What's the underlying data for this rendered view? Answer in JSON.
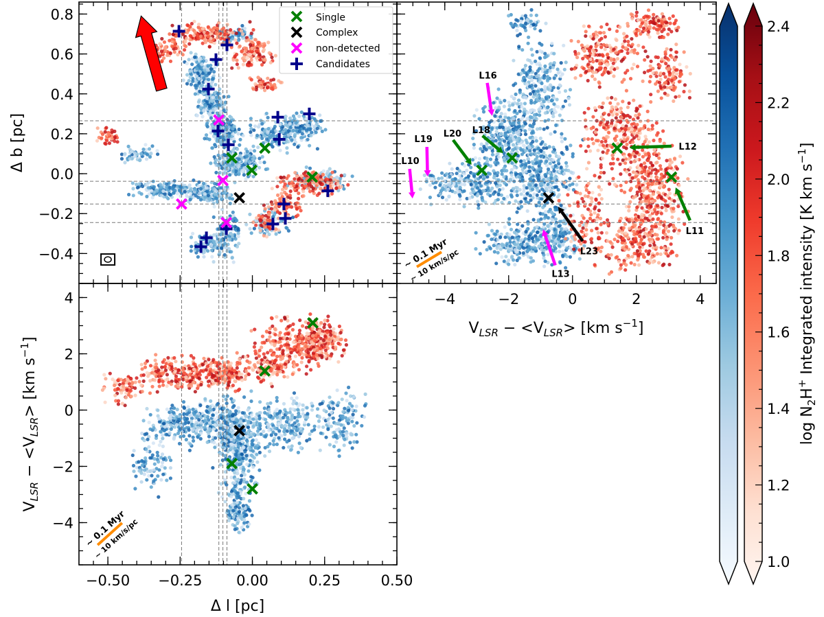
{
  "chart_data": {
    "type": "scatter",
    "panels": [
      {
        "id": "position-position",
        "xlabel": "",
        "ylabel": "Δ b [pc]",
        "xlim": [
          -0.6,
          0.5
        ],
        "ylim": [
          -0.55,
          0.86
        ],
        "yticks": [
          0.8,
          0.6,
          0.4,
          0.2,
          0.0,
          -0.2,
          -0.4
        ],
        "ytick_labels": [
          "0.8",
          "0.6",
          "0.4",
          "0.2",
          "0.0",
          "−0.2",
          "−0.4"
        ],
        "vlines": [
          -0.245,
          -0.116,
          -0.102,
          -0.088
        ],
        "hlines": [
          0.265,
          -0.038,
          -0.152,
          -0.245
        ],
        "markers": {
          "single": [
            [
              0.043,
              0.128
            ],
            [
              -0.071,
              0.079
            ],
            [
              -0.002,
              0.017
            ],
            [
              0.207,
              -0.017
            ]
          ],
          "complex": [
            [
              -0.045,
              -0.121
            ]
          ],
          "non_detected": [
            [
              -0.116,
              0.269
            ],
            [
              -0.102,
              -0.034
            ],
            [
              -0.245,
              -0.152
            ],
            [
              -0.09,
              -0.245
            ]
          ],
          "candidates": [
            [
              -0.254,
              0.714
            ],
            [
              -0.088,
              0.645
            ],
            [
              -0.126,
              0.572
            ],
            [
              -0.152,
              0.424
            ],
            [
              -0.119,
              0.214
            ],
            [
              -0.083,
              0.145
            ],
            [
              0.088,
              0.283
            ],
            [
              0.197,
              0.3
            ],
            [
              0.093,
              0.172
            ],
            [
              0.261,
              -0.086
            ],
            [
              0.109,
              -0.152
            ],
            [
              0.114,
              -0.224
            ],
            [
              0.071,
              -0.252
            ],
            [
              -0.09,
              -0.276
            ],
            [
              -0.159,
              -0.321
            ],
            [
              -0.178,
              -0.366
            ]
          ]
        },
        "big_arrow": {
          "from": [
            -0.314,
            0.421
          ],
          "to": [
            -0.385,
            0.79
          ],
          "color": "#ff0000"
        },
        "beam": [
          -0.5,
          -0.43
        ],
        "clouds": {
          "blue": [
            [
              -0.18,
              0.5,
              0.04,
              0.06,
              160
            ],
            [
              -0.14,
              0.35,
              0.04,
              0.06,
              160
            ],
            [
              -0.1,
              0.2,
              0.04,
              0.06,
              180
            ],
            [
              -0.05,
              0.05,
              0.06,
              0.05,
              200
            ],
            [
              -0.3,
              -0.08,
              0.08,
              0.03,
              150
            ],
            [
              -0.15,
              -0.1,
              0.06,
              0.04,
              160
            ],
            [
              0.1,
              0.2,
              0.08,
              0.06,
              180
            ],
            [
              0.18,
              0.25,
              0.05,
              0.04,
              80
            ],
            [
              -0.15,
              -0.35,
              0.05,
              0.05,
              90
            ],
            [
              -0.08,
              -0.3,
              0.03,
              0.08,
              90
            ],
            [
              0.25,
              -0.03,
              0.08,
              0.04,
              80
            ],
            [
              -0.4,
              0.1,
              0.05,
              0.03,
              50
            ],
            [
              -0.05,
              0.7,
              0.05,
              0.03,
              50
            ],
            [
              0.05,
              -0.25,
              0.05,
              0.05,
              70
            ]
          ],
          "red": [
            [
              -0.15,
              0.7,
              0.1,
              0.04,
              180
            ],
            [
              0.0,
              0.6,
              0.05,
              0.05,
              110
            ],
            [
              -0.3,
              0.62,
              0.05,
              0.04,
              60
            ],
            [
              0.05,
              0.45,
              0.04,
              0.03,
              50
            ],
            [
              0.2,
              -0.05,
              0.08,
              0.04,
              160
            ],
            [
              0.1,
              -0.15,
              0.05,
              0.05,
              80
            ],
            [
              -0.5,
              0.19,
              0.03,
              0.03,
              40
            ],
            [
              0.05,
              -0.25,
              0.03,
              0.04,
              40
            ]
          ]
        }
      },
      {
        "id": "velocity-position",
        "xlabel": "V_{LSR} − <V_{LSR}> [km s^{−1}]",
        "ylabel": "",
        "xlim": [
          -5.5,
          4.5
        ],
        "ylim": [
          -0.55,
          0.86
        ],
        "xticks": [
          -4,
          -2,
          0,
          2,
          4
        ],
        "xtick_labels": [
          "−4",
          "−2",
          "0",
          "2",
          "4"
        ],
        "hlines": [
          0.265,
          -0.038,
          -0.152,
          -0.245
        ],
        "markers": {
          "single": [
            [
              -2.84,
              0.017
            ],
            [
              -1.89,
              0.079
            ],
            [
              1.4,
              0.128
            ],
            [
              3.1,
              -0.017
            ]
          ],
          "complex": [
            [
              -0.75,
              -0.121
            ]
          ]
        },
        "annotations": [
          {
            "label": "L16",
            "text": [
              -2.65,
              0.493
            ],
            "tail": [
              -2.67,
              0.455
            ],
            "head": [
              -2.52,
              0.29
            ],
            "color": "#ff00ff"
          },
          {
            "label": "L19",
            "text": [
              -4.67,
              0.176
            ],
            "tail": [
              -4.56,
              0.134
            ],
            "head": [
              -4.54,
              -0.014
            ],
            "color": "#ff00ff"
          },
          {
            "label": "L10",
            "text": [
              -5.08,
              0.066
            ],
            "tail": [
              -5.1,
              0.024
            ],
            "head": [
              -5.01,
              -0.124
            ],
            "color": "#ff00ff"
          },
          {
            "label": "L20",
            "text": [
              -3.76,
              0.203
            ],
            "tail": [
              -3.74,
              0.169
            ],
            "head": [
              -3.16,
              0.045
            ],
            "color": "#008000"
          },
          {
            "label": "L18",
            "text": [
              -2.86,
              0.221
            ],
            "tail": [
              -2.82,
              0.19
            ],
            "head": [
              -2.17,
              0.103
            ],
            "color": "#008000"
          },
          {
            "label": "L12",
            "text": [
              3.61,
              0.138
            ],
            "tail": [
              3.1,
              0.138
            ],
            "head": [
              1.78,
              0.131
            ],
            "color": "#008000"
          },
          {
            "label": "L11",
            "text": [
              3.83,
              -0.286
            ],
            "tail": [
              3.68,
              -0.234
            ],
            "head": [
              3.23,
              -0.069
            ],
            "color": "#008000"
          },
          {
            "label": "L23",
            "text": [
              0.52,
              -0.386
            ],
            "tail": [
              0.32,
              -0.338
            ],
            "head": [
              -0.45,
              -0.166
            ],
            "color": "#000000"
          },
          {
            "label": "L13",
            "text": [
              -0.37,
              -0.5
            ],
            "tail": [
              -0.54,
              -0.459
            ],
            "head": [
              -0.92,
              -0.279
            ],
            "color": "#ff00ff"
          }
        ],
        "scale_bar": {
          "top_text": "~ 0.1 Myr",
          "bottom_text": "~ 10 km/s/pc",
          "color": "#ff8c00"
        },
        "clouds": {
          "blue": [
            [
              -2,
              0.2,
              0.7,
              0.15,
              350
            ],
            [
              -1,
              0.0,
              0.8,
              0.15,
              350
            ],
            [
              -3,
              -0.05,
              0.8,
              0.08,
              200
            ],
            [
              -1.5,
              -0.35,
              1.0,
              0.08,
              250
            ],
            [
              -0.5,
              -0.3,
              0.5,
              0.1,
              150
            ],
            [
              -1,
              0.45,
              0.6,
              0.15,
              250
            ],
            [
              -4,
              -0.05,
              0.5,
              0.05,
              70
            ],
            [
              -1.5,
              0.75,
              0.4,
              0.05,
              50
            ]
          ],
          "red": [
            [
              1,
              0.6,
              0.8,
              0.1,
              200
            ],
            [
              2.5,
              0.75,
              0.6,
              0.05,
              120
            ],
            [
              2.5,
              -0.1,
              0.7,
              0.2,
              350
            ],
            [
              1.5,
              0.2,
              0.8,
              0.15,
              250
            ],
            [
              2,
              -0.35,
              0.8,
              0.1,
              200
            ],
            [
              0.5,
              -0.2,
              0.5,
              0.15,
              120
            ],
            [
              3,
              0.5,
              0.5,
              0.1,
              120
            ]
          ]
        }
      },
      {
        "id": "position-velocity",
        "xlabel": "Δ l [pc]",
        "ylabel": "V_{LSR} − <V_{LSR}> [km s^{−1}]",
        "xlim": [
          -0.6,
          0.5
        ],
        "ylim": [
          -5.5,
          4.5
        ],
        "xticks": [
          -0.5,
          -0.25,
          0.0,
          0.25,
          0.5
        ],
        "xtick_labels": [
          "−0.50",
          "−0.25",
          "0.00",
          "0.25",
          "0.50"
        ],
        "yticks": [
          4,
          2,
          0,
          -2,
          -4
        ],
        "ytick_labels": [
          "4",
          "2",
          "0",
          "−2",
          "−4"
        ],
        "vlines": [
          -0.245,
          -0.116,
          -0.102,
          -0.088
        ],
        "markers": {
          "single": [
            [
              0.209,
              3.1
            ],
            [
              0.043,
              1.39
            ],
            [
              -0.071,
              -1.9
            ],
            [
              0.0,
              -2.8
            ]
          ],
          "complex": [
            [
              -0.045,
              -0.73
            ]
          ]
        },
        "scale_bar": {
          "top_text": "~ 0.1 Myr",
          "bottom_text": "~ 10 km/s/pc",
          "color": "#ff8c00"
        },
        "clouds": {
          "blue": [
            [
              -0.05,
              -1.5,
              0.05,
              1.0,
              300
            ],
            [
              -0.1,
              -0.5,
              0.08,
              0.6,
              250
            ],
            [
              0.1,
              -0.5,
              0.1,
              0.7,
              250
            ],
            [
              -0.25,
              -0.5,
              0.1,
              0.5,
              200
            ],
            [
              -0.05,
              -3.5,
              0.03,
              0.6,
              120
            ],
            [
              0.3,
              -0.5,
              0.06,
              0.8,
              120
            ],
            [
              -0.35,
              -2,
              0.05,
              0.6,
              80
            ]
          ],
          "red": [
            [
              -0.25,
              1.3,
              0.1,
              0.4,
              220
            ],
            [
              -0.1,
              1.3,
              0.05,
              0.4,
              150
            ],
            [
              0.15,
              2.3,
              0.1,
              0.6,
              250
            ],
            [
              0.25,
              2.5,
              0.06,
              0.5,
              150
            ],
            [
              -0.45,
              0.8,
              0.05,
              0.4,
              80
            ],
            [
              0.05,
              1.5,
              0.08,
              0.4,
              120
            ]
          ]
        }
      }
    ],
    "legend": {
      "placement": "top-right of upper-left panel",
      "entries": [
        {
          "label": "Single",
          "marker": "x",
          "color": "#008000"
        },
        {
          "label": "Complex",
          "marker": "x",
          "color": "#000000"
        },
        {
          "label": "non-detected",
          "marker": "x",
          "color": "#ff00ff"
        },
        {
          "label": "Candidates",
          "marker": "+",
          "color": "#00008b"
        }
      ]
    },
    "colorbar": {
      "label": "log N_{2}H^{+} Integrated intensity [K km s^{−1}]",
      "range": [
        1.0,
        2.4
      ],
      "ticks": [
        2.4,
        2.2,
        2.0,
        1.8,
        1.6,
        1.4,
        1.2,
        1.0
      ],
      "tick_labels": [
        "2.4",
        "2.2",
        "2.0",
        "1.8",
        "1.6",
        "1.4",
        "1.2",
        "1.0"
      ],
      "colormaps": [
        "Blues",
        "Reds"
      ],
      "extend": "both"
    }
  }
}
